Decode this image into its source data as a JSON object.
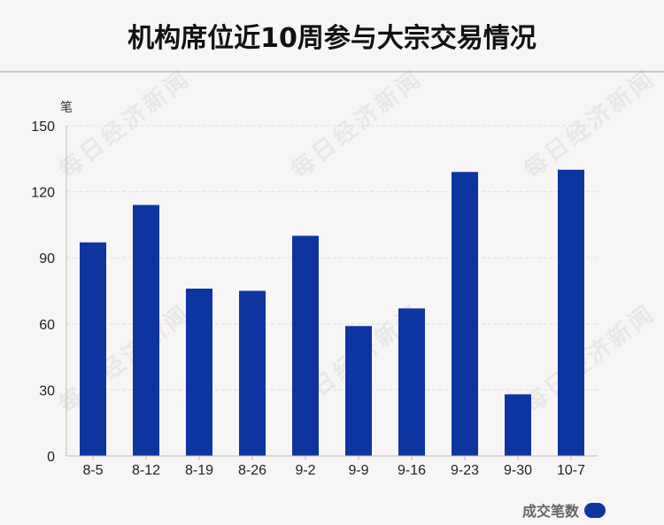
{
  "chart_data": {
    "type": "bar",
    "title": "机构席位近10周参与大宗交易情况",
    "ylabel": "笔",
    "categories": [
      "8-5",
      "8-12",
      "8-19",
      "8-26",
      "9-2",
      "9-9",
      "9-16",
      "9-23",
      "9-30",
      "10-7"
    ],
    "series": [
      {
        "name": "成交笔数",
        "values": [
          97,
          114,
          76,
          75,
          100,
          59,
          67,
          129,
          28,
          130
        ]
      }
    ],
    "ylim": [
      0,
      150
    ],
    "yticks": [
      0,
      30,
      60,
      90,
      120,
      150
    ],
    "grid": true,
    "legend_position": "bottom-right",
    "bar_color": "#0d35a0",
    "watermark": "每日经济新闻"
  }
}
